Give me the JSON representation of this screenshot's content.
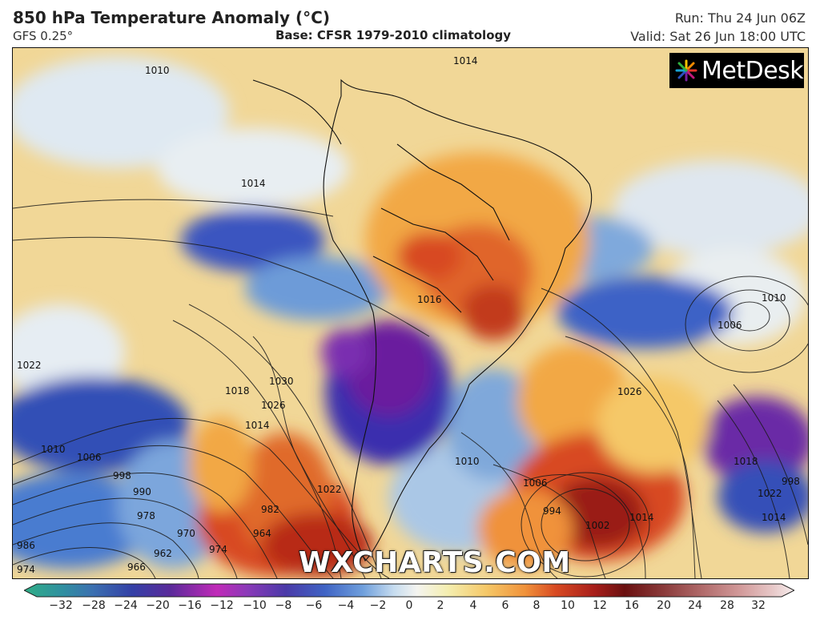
{
  "header": {
    "title": "850 hPa Temperature Anomaly (°C)",
    "model": "GFS 0.25°",
    "base": "Base: CFSR 1979-2010 climatology",
    "run": "Run: Thu 24 Jun 06Z",
    "valid": "Valid: Sat 26 Jun 18:00 UTC"
  },
  "brand": {
    "logo_text": "MetDesk",
    "watermark": "WXCHARTS.COM"
  },
  "colorbar": {
    "ticks": [
      "−32",
      "−28",
      "−24",
      "−20",
      "−16",
      "−12",
      "−10",
      "−8",
      "−6",
      "−4",
      "−2",
      "0",
      "2",
      "4",
      "6",
      "8",
      "10",
      "12",
      "16",
      "20",
      "24",
      "28",
      "32"
    ],
    "colors": [
      "#2fae86",
      "#3b6fb0",
      "#3340a6",
      "#4a2a9a",
      "#7a2a9a",
      "#b02ab0",
      "#8a3ab8",
      "#4a3aa8",
      "#3f63c4",
      "#5f95d8",
      "#a9cbeb",
      "#f4f4f0",
      "#f4f0b0",
      "#f5c868",
      "#f0923a",
      "#d84a22",
      "#a81e1a",
      "#7a1212",
      "#8a3a3a",
      "#b06a6a",
      "#d29a9a",
      "#e6c6c6",
      "#f4e6e6"
    ]
  },
  "isobar_labels": [
    "1010",
    "1014",
    "1014",
    "1016",
    "1010",
    "1006",
    "1026",
    "1030",
    "1026",
    "1018",
    "1014",
    "1022",
    "1010",
    "1006",
    "998",
    "990",
    "978",
    "970",
    "962",
    "966",
    "974",
    "986",
    "974",
    "1002",
    "994",
    "1006",
    "1010",
    "1014",
    "1018",
    "1022",
    "1022",
    "1014",
    "998",
    "982",
    "964"
  ],
  "map_colors": {
    "ocean_warm": "#f2d48a",
    "cold_core": "#6a1fa0",
    "warm_core": "#c23a18",
    "blue": "#3e63c8",
    "light": "#dfe9f2"
  }
}
